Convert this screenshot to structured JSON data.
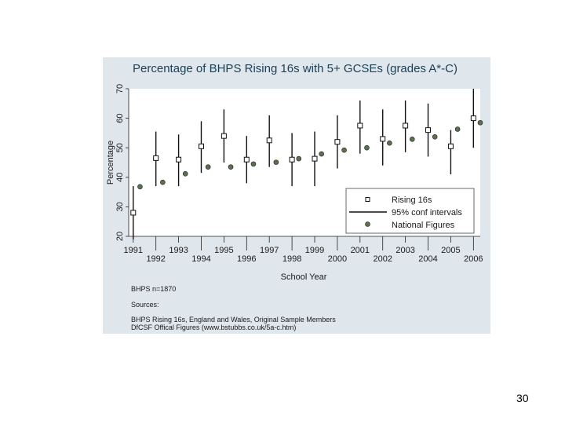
{
  "chart_data": {
    "type": "scatter",
    "title": "Percentage of BHPS Rising 16s with 5+ GCSEs (grades A*-C)",
    "xlabel": "School Year",
    "ylabel": "Percentage",
    "xlim": [
      1990.8,
      2006.3
    ],
    "ylim": [
      20,
      70
    ],
    "y_ticks": [
      20,
      30,
      40,
      50,
      60,
      70
    ],
    "x_ticks_upper": [
      1991,
      1993,
      1995,
      1997,
      1999,
      2001,
      2003,
      2005
    ],
    "x_ticks_lower": [
      1992,
      1994,
      1996,
      1998,
      2000,
      2002,
      2004,
      2006
    ],
    "series": [
      {
        "name": "Rising 16s",
        "marker": "hollow-square",
        "x": [
          1991,
          1992,
          1993,
          1994,
          1995,
          1996,
          1997,
          1998,
          1999,
          2000,
          2001,
          2002,
          2003,
          2004,
          2005,
          2006
        ],
        "values": [
          28,
          46.5,
          46,
          50.5,
          54,
          46,
          52.5,
          46,
          46.3,
          52,
          57.5,
          53,
          57.5,
          56,
          50.5,
          60
        ]
      },
      {
        "name": "95% conf intervals",
        "marker": "vertical-line",
        "x": [
          1991,
          1992,
          1993,
          1994,
          1995,
          1996,
          1997,
          1998,
          1999,
          2000,
          2001,
          2002,
          2003,
          2004,
          2005,
          2006
        ],
        "lower": [
          19,
          37,
          37,
          41.5,
          45,
          38,
          43.5,
          37,
          37,
          43,
          48,
          44,
          48.5,
          47,
          41,
          50
        ],
        "upper": [
          37,
          55.5,
          54.5,
          59,
          63,
          54,
          61,
          55,
          55.5,
          61,
          66,
          63,
          66,
          65,
          56,
          70
        ]
      },
      {
        "name": "National Figures",
        "marker": "filled-circle",
        "x": [
          1991,
          1992,
          1993,
          1994,
          1995,
          1996,
          1997,
          1998,
          1999,
          2000,
          2001,
          2002,
          2003,
          2004,
          2005,
          2006
        ],
        "values": [
          36.8,
          38.3,
          41.2,
          43.5,
          43.5,
          44.5,
          45.1,
          46.3,
          47.9,
          49.2,
          50,
          51.6,
          52.9,
          53.7,
          56.3,
          58.5
        ]
      }
    ],
    "legend_position": "bottom-right",
    "grid": false,
    "notes": [
      "BHPS n=1870",
      "Sources:",
      "BHPS Rising 16s, England and Wales, Original Sample Members",
      "DfCSF Offical Figures (www.bstubbs.co.uk/5a-c.htm)"
    ]
  },
  "slide_number": "30",
  "colors": {
    "frame": "#dfe6ec",
    "plot": "#ffffff",
    "title": "#1b3f55",
    "marker_fill": "#5d6f4e"
  }
}
